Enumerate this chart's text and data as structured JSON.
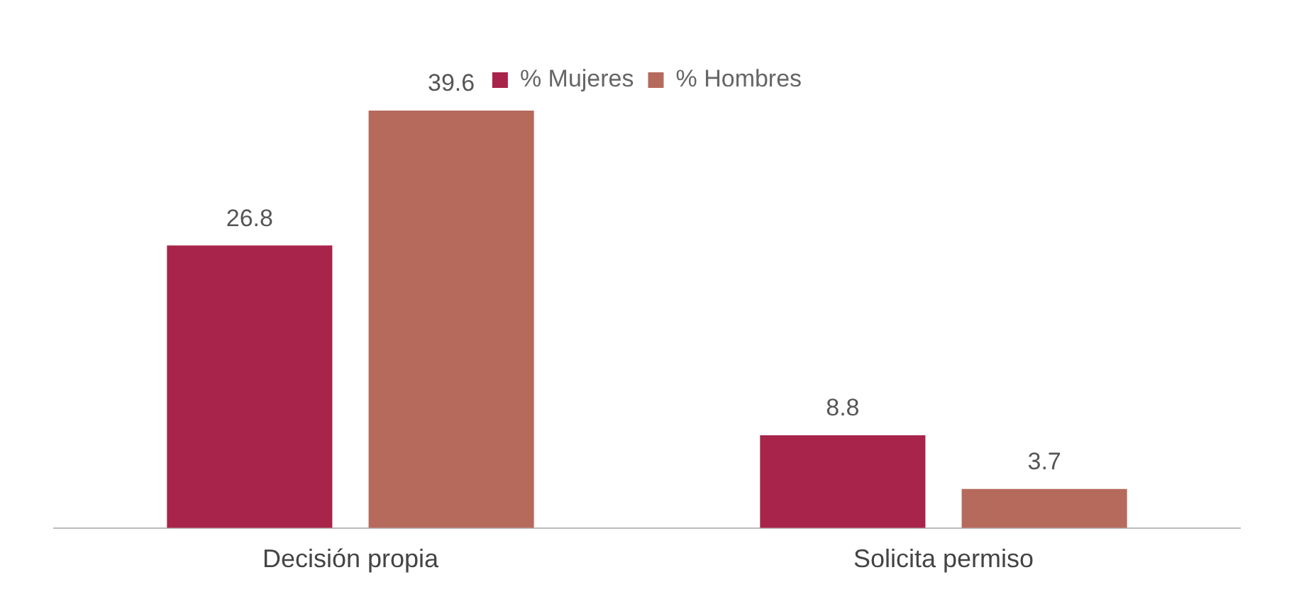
{
  "chart_data": {
    "type": "bar",
    "categories": [
      "Decisión propia",
      "Solicita permiso"
    ],
    "series": [
      {
        "name": "% Mujeres",
        "color": "#a8244a",
        "values": [
          26.8,
          8.8
        ]
      },
      {
        "name": "% Hombres",
        "color": "#b66a5c",
        "values": [
          39.6,
          3.7
        ]
      }
    ],
    "data_labels": true,
    "legend": "top",
    "grid": false
  }
}
